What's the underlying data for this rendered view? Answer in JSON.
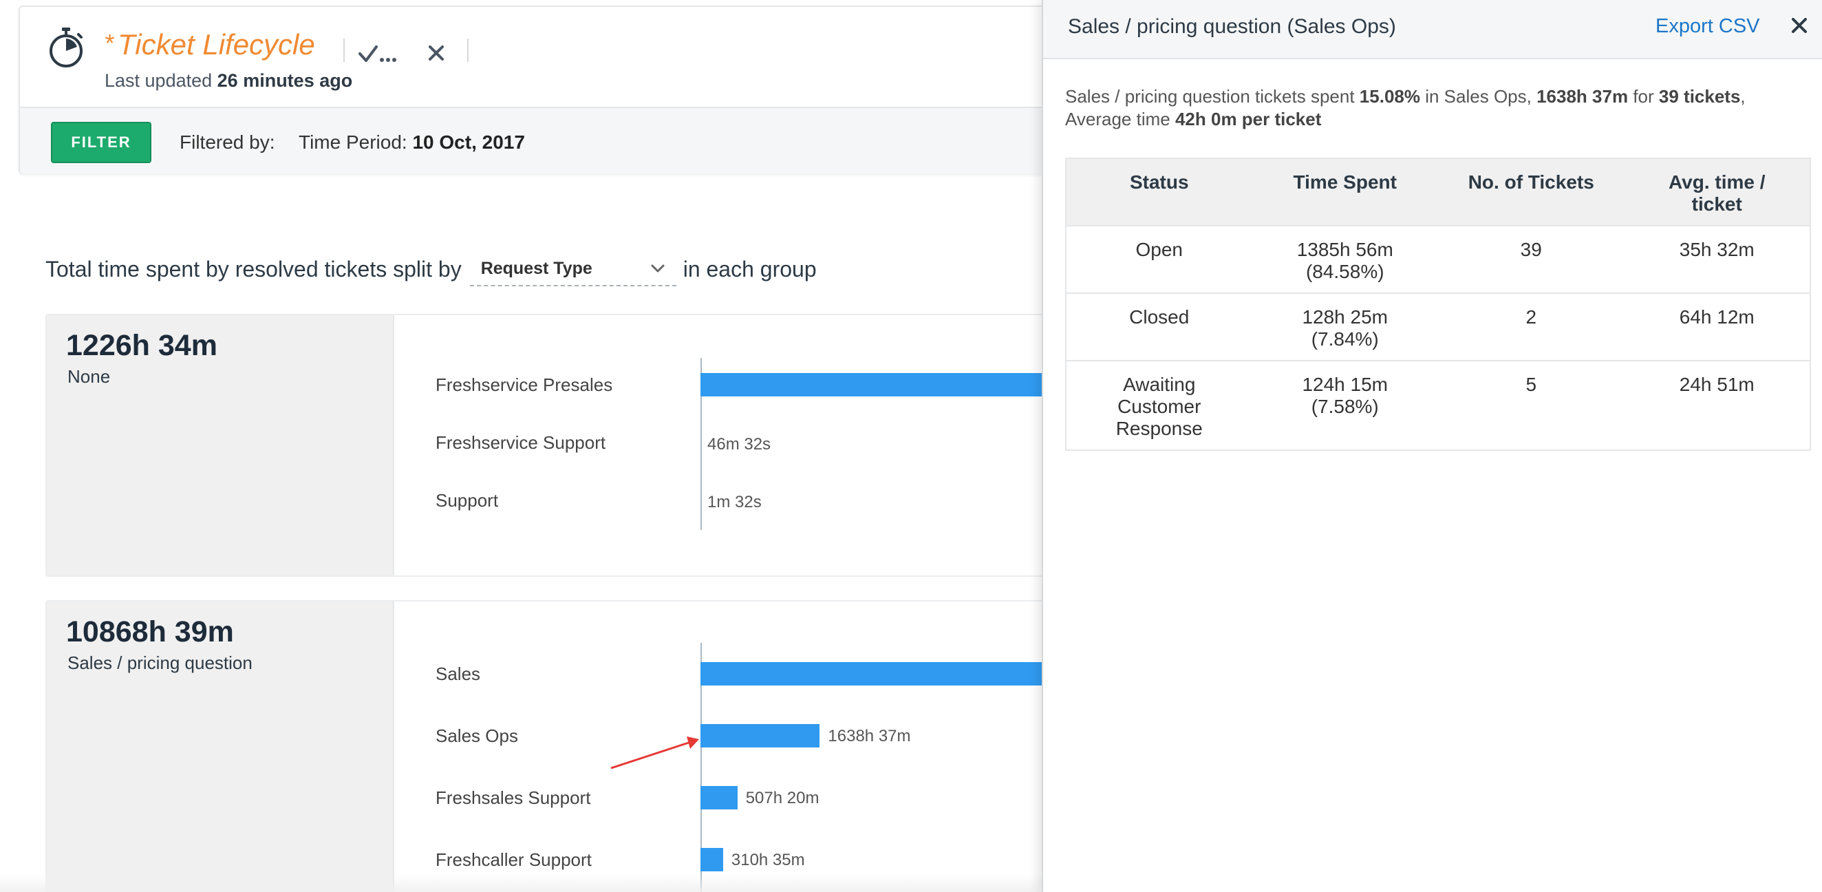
{
  "header": {
    "title_star": "*",
    "title": "Ticket Lifecycle",
    "last_updated_prefix": "Last updated",
    "last_updated_value": "26 minutes ago"
  },
  "filter_bar": {
    "filter_button": "FILTER",
    "filtered_by": "Filtered by:",
    "time_period_label": "Time Period:",
    "time_period_value": "10 Oct, 2017"
  },
  "split": {
    "prefix": "Total time spent by resolved tickets split by",
    "dropdown_value": "Request Type",
    "suffix": "in each group"
  },
  "groups": [
    {
      "total": "1226h 34m",
      "name": "None",
      "rows": [
        {
          "label": "Freshservice Presales",
          "value": "",
          "share": 1.0
        },
        {
          "label": "Freshservice Support",
          "value": "46m 32s",
          "share": 0.0
        },
        {
          "label": "Support",
          "value": "1m 32s",
          "share": 0.0
        }
      ]
    },
    {
      "total": "10868h 39m",
      "name": "Sales / pricing question",
      "rows": [
        {
          "label": "Sales",
          "value": "",
          "share": 1.0
        },
        {
          "label": "Sales Ops",
          "value": "1638h 37m",
          "share": 0.1508
        },
        {
          "label": "Freshsales Support",
          "value": "507h 20m",
          "share": 0.0467
        },
        {
          "label": "Freshcaller Support",
          "value": "310h 35m",
          "share": 0.0286
        }
      ]
    }
  ],
  "panel": {
    "title": "Sales / pricing question (Sales Ops)",
    "export_label": "Export CSV",
    "summary": {
      "p1": "Sales / pricing question tickets spent",
      "percent": "15.08%",
      "p2": "in Sales Ops,",
      "time": "1638h 37m",
      "p3": "for",
      "tickets": "39 tickets",
      "p4": ", Average time",
      "avg": "42h 0m per ticket"
    },
    "table": {
      "headers": [
        "Status",
        "Time Spent",
        "No. of Tickets",
        "Avg. time / ticket"
      ],
      "rows": [
        {
          "status": "Open",
          "time": "1385h 56m",
          "pct": "(84.58%)",
          "count": "39",
          "avg": "35h 32m"
        },
        {
          "status": "Closed",
          "time": "128h 25m",
          "pct": "(7.84%)",
          "count": "2",
          "avg": "64h 12m"
        },
        {
          "status": "Awaiting Customer Response",
          "time": "124h 15m",
          "pct": "(7.58%)",
          "count": "5",
          "avg": "24h 51m"
        }
      ]
    }
  },
  "colors": {
    "bar": "#2f9af0",
    "accent_title": "#f08a32",
    "filter_button": "#1dab6d",
    "link": "#1a76c9",
    "arrow": "#e53935"
  },
  "icons": {
    "timer": "stopwatch-icon",
    "save": "save-check-icon",
    "close": "close-icon",
    "dropdown": "chevron-down-icon"
  }
}
